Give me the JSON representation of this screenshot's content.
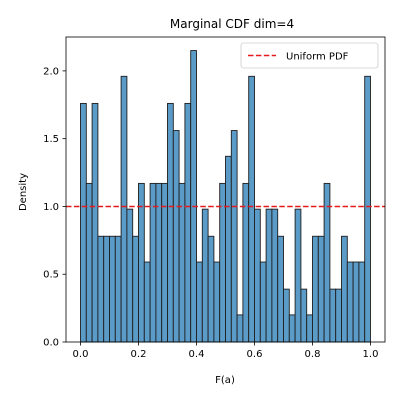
{
  "chart_data": {
    "type": "bar",
    "title": "Marginal CDF dim=4",
    "xlabel": "F(a)",
    "ylabel": "Density",
    "xlim": [
      -0.05,
      1.05
    ],
    "ylim": [
      0,
      2.25
    ],
    "grid": false,
    "legend_position": "top-right",
    "x_ticks": [
      "0.0",
      "0.2",
      "0.4",
      "0.6",
      "0.8",
      "1.0"
    ],
    "x_tick_values": [
      0.0,
      0.2,
      0.4,
      0.6,
      0.8,
      1.0
    ],
    "y_ticks": [
      "0.0",
      "0.5",
      "1.0",
      "1.5",
      "2.0"
    ],
    "y_tick_values": [
      0.0,
      0.5,
      1.0,
      1.5,
      2.0
    ],
    "bins": {
      "start": 0.0,
      "end": 1.0,
      "count": 50,
      "values": [
        1.76,
        1.17,
        1.76,
        0.78,
        0.78,
        0.78,
        0.78,
        1.96,
        0.98,
        0.78,
        1.17,
        0.59,
        1.17,
        1.17,
        1.17,
        1.76,
        1.56,
        1.17,
        1.76,
        2.15,
        0.59,
        0.98,
        0.78,
        0.59,
        1.17,
        1.37,
        1.56,
        0.2,
        1.17,
        1.96,
        0.98,
        0.59,
        0.98,
        0.98,
        0.78,
        0.39,
        0.2,
        0.98,
        0.39,
        0.2,
        0.78,
        0.78,
        1.17,
        0.39,
        0.39,
        0.78,
        0.59,
        0.59,
        0.59,
        1.96
      ],
      "color": "#5a9bc8",
      "edge_color": "#1f1f1f"
    },
    "series": [
      {
        "name": "Uniform PDF",
        "type": "hline",
        "y": 1.0,
        "color": "#e41a1c",
        "style": "dashed"
      }
    ]
  }
}
